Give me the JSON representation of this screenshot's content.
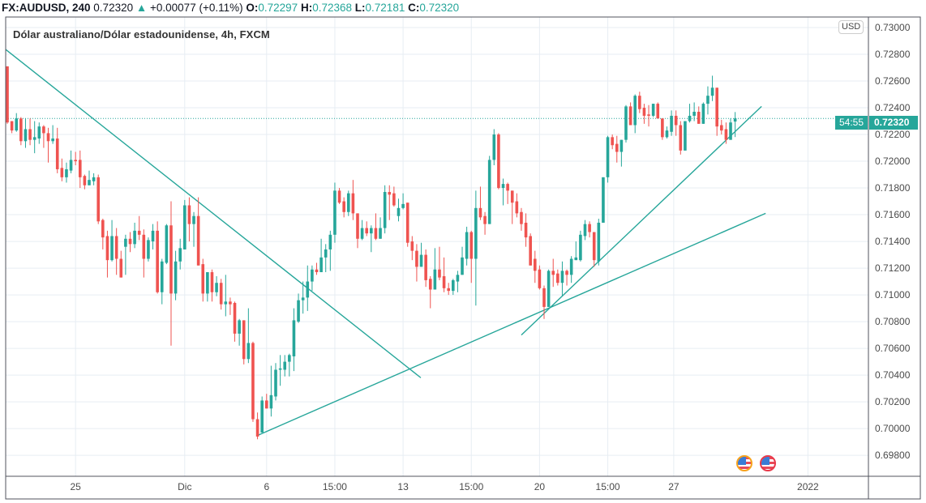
{
  "header": {
    "symbol": "FX:AUDUSD, 240",
    "last": "0.72320",
    "arrow": "▲",
    "change": "+0.00077 (+0.11%)",
    "o_label": "O:",
    "o": "0.72297",
    "h_label": "H:",
    "h": "0.72368",
    "l_label": "L:",
    "l": "0.72181",
    "c_label": "C:",
    "c": "0.72320"
  },
  "legend": "Dólar australiano/Dólar estadounidense, 4h, FXCM",
  "currency_badge": "USD",
  "price_label": {
    "price": "0.72320",
    "countdown": "54:55"
  },
  "colors": {
    "up": "#26a69a",
    "down": "#ef5350",
    "grid": "#e7edf3",
    "trendline": "#26a69a"
  },
  "events": [
    {
      "icon": "us-flag-icon"
    },
    {
      "icon": "us-flag-icon"
    }
  ],
  "chart_data": {
    "type": "candlestick",
    "title": "Dólar australiano/Dólar estadounidense, 4h, FXCM",
    "ylim": [
      0.69643,
      0.73079
    ],
    "xlim": [
      -0.36,
      189.3
    ],
    "grid": true,
    "yticks": [
      "0.73000",
      "0.72800",
      "0.72600",
      "0.72400",
      "0.72200",
      "0.72000",
      "0.71800",
      "0.71600",
      "0.71400",
      "0.71200",
      "0.71000",
      "0.70800",
      "0.70600",
      "0.70400",
      "0.70200",
      "0.70000",
      "0.69800"
    ],
    "xticks": [
      {
        "label": "25",
        "index": 15
      },
      {
        "label": "Dic",
        "index": 39
      },
      {
        "label": "6",
        "index": 57
      },
      {
        "label": "15:00",
        "index": 72
      },
      {
        "label": "13",
        "index": 87
      },
      {
        "label": "15:00",
        "index": 102
      },
      {
        "label": "20",
        "index": 117
      },
      {
        "label": "15:00",
        "index": 132
      },
      {
        "label": "27",
        "index": 146.5
      },
      {
        "label": "2022",
        "index": 176
      }
    ],
    "current_price": 0.7232,
    "trendlines": [
      {
        "from": [
          -0.36,
          0.72836
        ],
        "to": [
          90.9,
          0.7038
        ]
      },
      {
        "from": [
          55.1,
          0.6995
        ],
        "to": [
          166.7,
          0.7161
        ]
      },
      {
        "from": [
          113,
          0.707
        ],
        "to": [
          165.8,
          0.7241
        ]
      }
    ],
    "ohlc": [
      [
        0.7271,
        0.7271,
        0.7228,
        0.7229
      ],
      [
        0.723,
        0.723,
        0.7221,
        0.7223
      ],
      [
        0.7223,
        0.7236,
        0.7222,
        0.7232
      ],
      [
        0.7232,
        0.7233,
        0.7212,
        0.7215
      ],
      [
        0.7215,
        0.7232,
        0.721,
        0.7224
      ],
      [
        0.7224,
        0.7232,
        0.7212,
        0.7216
      ],
      [
        0.7216,
        0.723,
        0.7206,
        0.7218
      ],
      [
        0.7217,
        0.7229,
        0.7213,
        0.7226
      ],
      [
        0.7226,
        0.7227,
        0.721,
        0.7221
      ],
      [
        0.7221,
        0.7225,
        0.7199,
        0.7215
      ],
      [
        0.7215,
        0.7227,
        0.7213,
        0.7217
      ],
      [
        0.7217,
        0.7225,
        0.7191,
        0.7194
      ],
      [
        0.7195,
        0.7202,
        0.7185,
        0.7188
      ],
      [
        0.7188,
        0.7199,
        0.7184,
        0.7194
      ],
      [
        0.7193,
        0.7208,
        0.7191,
        0.7201
      ],
      [
        0.7201,
        0.7207,
        0.7197,
        0.72
      ],
      [
        0.7201,
        0.7208,
        0.718,
        0.7188
      ],
      [
        0.7189,
        0.719,
        0.7179,
        0.7182
      ],
      [
        0.7182,
        0.7193,
        0.7182,
        0.7186
      ],
      [
        0.7185,
        0.7191,
        0.7182,
        0.7188
      ],
      [
        0.7188,
        0.719,
        0.7153,
        0.7155
      ],
      [
        0.7156,
        0.7157,
        0.7134,
        0.7143
      ],
      [
        0.7144,
        0.7148,
        0.7113,
        0.7126
      ],
      [
        0.7126,
        0.7156,
        0.7125,
        0.7144
      ],
      [
        0.7144,
        0.715,
        0.7115,
        0.7127
      ],
      [
        0.7127,
        0.7133,
        0.7113,
        0.7113
      ],
      [
        0.7136,
        0.7145,
        0.7115,
        0.7142
      ],
      [
        0.7142,
        0.7147,
        0.7132,
        0.7138
      ],
      [
        0.7138,
        0.7154,
        0.7135,
        0.7148
      ],
      [
        0.7148,
        0.7159,
        0.7141,
        0.7145
      ],
      [
        0.7145,
        0.7149,
        0.7113,
        0.7127
      ],
      [
        0.7127,
        0.7143,
        0.7125,
        0.7141
      ],
      [
        0.714,
        0.7153,
        0.7134,
        0.7148
      ],
      [
        0.7148,
        0.7155,
        0.7101,
        0.7102
      ],
      [
        0.7102,
        0.7127,
        0.7093,
        0.7125
      ],
      [
        0.7124,
        0.7153,
        0.7123,
        0.7152
      ],
      [
        0.7152,
        0.717,
        0.7062,
        0.7101
      ],
      [
        0.7101,
        0.7133,
        0.7096,
        0.7125
      ],
      [
        0.7125,
        0.7142,
        0.7119,
        0.7135
      ],
      [
        0.7134,
        0.7171,
        0.7134,
        0.7167
      ],
      [
        0.7167,
        0.7173,
        0.714,
        0.7153
      ],
      [
        0.7153,
        0.7162,
        0.7136,
        0.7159
      ],
      [
        0.7159,
        0.7173,
        0.7122,
        0.7122
      ],
      [
        0.7123,
        0.7127,
        0.7095,
        0.7101
      ],
      [
        0.7101,
        0.7117,
        0.7095,
        0.7117
      ],
      [
        0.7117,
        0.7119,
        0.7095,
        0.7102
      ],
      [
        0.7102,
        0.7114,
        0.7099,
        0.7109
      ],
      [
        0.7109,
        0.7112,
        0.7089,
        0.7093
      ],
      [
        0.7093,
        0.7115,
        0.7084,
        0.7095
      ],
      [
        0.7095,
        0.7098,
        0.7085,
        0.7093
      ],
      [
        0.7094,
        0.7095,
        0.7065,
        0.7071
      ],
      [
        0.7071,
        0.7082,
        0.7062,
        0.7081
      ],
      [
        0.7081,
        0.7081,
        0.7048,
        0.7052
      ],
      [
        0.7052,
        0.709,
        0.7049,
        0.7064
      ],
      [
        0.7064,
        0.7065,
        0.7005,
        0.7007
      ],
      [
        0.7007,
        0.7012,
        0.6992,
        0.6994
      ],
      [
        0.6997,
        0.7024,
        0.6997,
        0.7021
      ],
      [
        0.7021,
        0.7026,
        0.7015,
        0.7015
      ],
      [
        0.7015,
        0.7047,
        0.7009,
        0.7025
      ],
      [
        0.7024,
        0.7049,
        0.7021,
        0.7044
      ],
      [
        0.7044,
        0.7055,
        0.7032,
        0.7045
      ],
      [
        0.7044,
        0.7055,
        0.7039,
        0.705
      ],
      [
        0.705,
        0.7056,
        0.7039,
        0.7055
      ],
      [
        0.7054,
        0.709,
        0.7043,
        0.7081
      ],
      [
        0.708,
        0.7101,
        0.7079,
        0.7096
      ],
      [
        0.7096,
        0.711,
        0.7086,
        0.7098
      ],
      [
        0.7098,
        0.7122,
        0.7088,
        0.711
      ],
      [
        0.711,
        0.7122,
        0.7103,
        0.7119
      ],
      [
        0.7119,
        0.7124,
        0.7115,
        0.7117
      ],
      [
        0.7117,
        0.7142,
        0.7117,
        0.7128
      ],
      [
        0.7128,
        0.7138,
        0.7117,
        0.7134
      ],
      [
        0.7134,
        0.7148,
        0.7118,
        0.7145
      ],
      [
        0.7145,
        0.7184,
        0.7139,
        0.7178
      ],
      [
        0.7178,
        0.718,
        0.7168,
        0.7169
      ],
      [
        0.717,
        0.7173,
        0.7158,
        0.7162
      ],
      [
        0.7162,
        0.7178,
        0.7159,
        0.7176
      ],
      [
        0.7176,
        0.7186,
        0.7156,
        0.7161
      ],
      [
        0.7161,
        0.7161,
        0.7135,
        0.7142
      ],
      [
        0.7142,
        0.7156,
        0.7141,
        0.715
      ],
      [
        0.715,
        0.7155,
        0.7144,
        0.7146
      ],
      [
        0.7146,
        0.7152,
        0.7132,
        0.715
      ],
      [
        0.715,
        0.7161,
        0.7141,
        0.7142
      ],
      [
        0.7142,
        0.7158,
        0.7142,
        0.715
      ],
      [
        0.715,
        0.7182,
        0.7146,
        0.7177
      ],
      [
        0.7177,
        0.7182,
        0.7156,
        0.7175
      ],
      [
        0.7176,
        0.7181,
        0.7166,
        0.7167
      ],
      [
        0.7159,
        0.7172,
        0.7155,
        0.7165
      ],
      [
        0.7165,
        0.7176,
        0.7164,
        0.7168
      ],
      [
        0.7169,
        0.7169,
        0.7136,
        0.7139
      ],
      [
        0.714,
        0.7144,
        0.7126,
        0.7133
      ],
      [
        0.7133,
        0.7138,
        0.711,
        0.7121
      ],
      [
        0.7121,
        0.7139,
        0.7121,
        0.713
      ],
      [
        0.713,
        0.7134,
        0.7106,
        0.7111
      ],
      [
        0.7112,
        0.7114,
        0.709,
        0.7104
      ],
      [
        0.7104,
        0.7135,
        0.7104,
        0.7119
      ],
      [
        0.7119,
        0.7136,
        0.7111,
        0.7113
      ],
      [
        0.7114,
        0.7128,
        0.7102,
        0.7105
      ],
      [
        0.7105,
        0.7109,
        0.71,
        0.7103
      ],
      [
        0.7103,
        0.7112,
        0.71,
        0.7111
      ],
      [
        0.711,
        0.7118,
        0.7102,
        0.7115
      ],
      [
        0.7115,
        0.7136,
        0.7115,
        0.7128
      ],
      [
        0.7127,
        0.7151,
        0.7122,
        0.7147
      ],
      [
        0.7147,
        0.7148,
        0.7109,
        0.7127
      ],
      [
        0.7127,
        0.7178,
        0.7092,
        0.7165
      ],
      [
        0.7165,
        0.7181,
        0.7156,
        0.7158
      ],
      [
        0.7159,
        0.7162,
        0.7145,
        0.7153
      ],
      [
        0.7153,
        0.7204,
        0.7153,
        0.7201
      ],
      [
        0.7201,
        0.7224,
        0.7197,
        0.722
      ],
      [
        0.722,
        0.7221,
        0.7179,
        0.718
      ],
      [
        0.718,
        0.7187,
        0.7167,
        0.7183
      ],
      [
        0.7183,
        0.7184,
        0.7168,
        0.7178
      ],
      [
        0.7178,
        0.7178,
        0.7153,
        0.7169
      ],
      [
        0.717,
        0.7176,
        0.7158,
        0.7161
      ],
      [
        0.7162,
        0.7165,
        0.7148,
        0.7153
      ],
      [
        0.7154,
        0.7161,
        0.7136,
        0.7143
      ],
      [
        0.7144,
        0.7146,
        0.7122,
        0.7122
      ],
      [
        0.7127,
        0.7133,
        0.7109,
        0.7118
      ],
      [
        0.7119,
        0.7122,
        0.7104,
        0.7105
      ],
      [
        0.7105,
        0.7107,
        0.7082,
        0.7091
      ],
      [
        0.7091,
        0.7119,
        0.7091,
        0.7118
      ],
      [
        0.7118,
        0.7127,
        0.7106,
        0.7115
      ],
      [
        0.7116,
        0.7119,
        0.7107,
        0.7109
      ],
      [
        0.7109,
        0.7125,
        0.7099,
        0.7118
      ],
      [
        0.7118,
        0.7119,
        0.7107,
        0.7115
      ],
      [
        0.7115,
        0.7129,
        0.7109,
        0.7127
      ],
      [
        0.7126,
        0.714,
        0.7126,
        0.7128
      ],
      [
        0.7126,
        0.7148,
        0.7125,
        0.7145
      ],
      [
        0.7144,
        0.7156,
        0.7141,
        0.7153
      ],
      [
        0.7153,
        0.7155,
        0.7143,
        0.7147
      ],
      [
        0.7147,
        0.7147,
        0.7121,
        0.7126
      ],
      [
        0.7125,
        0.7157,
        0.7122,
        0.7154
      ],
      [
        0.7154,
        0.7188,
        0.7154,
        0.7188
      ],
      [
        0.7188,
        0.7219,
        0.7184,
        0.7218
      ],
      [
        0.7218,
        0.722,
        0.7209,
        0.7212
      ],
      [
        0.7213,
        0.7219,
        0.7199,
        0.7207
      ],
      [
        0.7207,
        0.7216,
        0.7196,
        0.7216
      ],
      [
        0.7216,
        0.7242,
        0.7214,
        0.7241
      ],
      [
        0.7241,
        0.7244,
        0.7227,
        0.7227
      ],
      [
        0.7227,
        0.725,
        0.7221,
        0.7249
      ],
      [
        0.7249,
        0.7252,
        0.7236,
        0.7239
      ],
      [
        0.724,
        0.7243,
        0.7228,
        0.7234
      ],
      [
        0.7235,
        0.7242,
        0.7226,
        0.7234
      ],
      [
        0.7234,
        0.7243,
        0.7233,
        0.7243
      ],
      [
        0.7243,
        0.7244,
        0.7232,
        0.7232
      ],
      [
        0.7232,
        0.7232,
        0.7216,
        0.7218
      ],
      [
        0.7218,
        0.7226,
        0.7217,
        0.7223
      ],
      [
        0.7222,
        0.7238,
        0.7219,
        0.7234
      ],
      [
        0.7234,
        0.7238,
        0.7219,
        0.7227
      ],
      [
        0.7227,
        0.723,
        0.7205,
        0.7208
      ],
      [
        0.7208,
        0.723,
        0.7208,
        0.723
      ],
      [
        0.723,
        0.7243,
        0.7229,
        0.7234
      ],
      [
        0.7234,
        0.7244,
        0.723,
        0.7237
      ],
      [
        0.7237,
        0.7241,
        0.7228,
        0.7228
      ],
      [
        0.7228,
        0.7244,
        0.7228,
        0.7243
      ],
      [
        0.7243,
        0.7256,
        0.7235,
        0.7249
      ],
      [
        0.7249,
        0.7264,
        0.7245,
        0.7255
      ],
      [
        0.7255,
        0.7255,
        0.7219,
        0.7226
      ],
      [
        0.7227,
        0.7231,
        0.722,
        0.7223
      ],
      [
        0.7224,
        0.7229,
        0.7213,
        0.7216
      ],
      [
        0.7216,
        0.7232,
        0.7216,
        0.7229
      ],
      [
        0.72297,
        0.72368,
        0.72181,
        0.7232
      ]
    ]
  }
}
